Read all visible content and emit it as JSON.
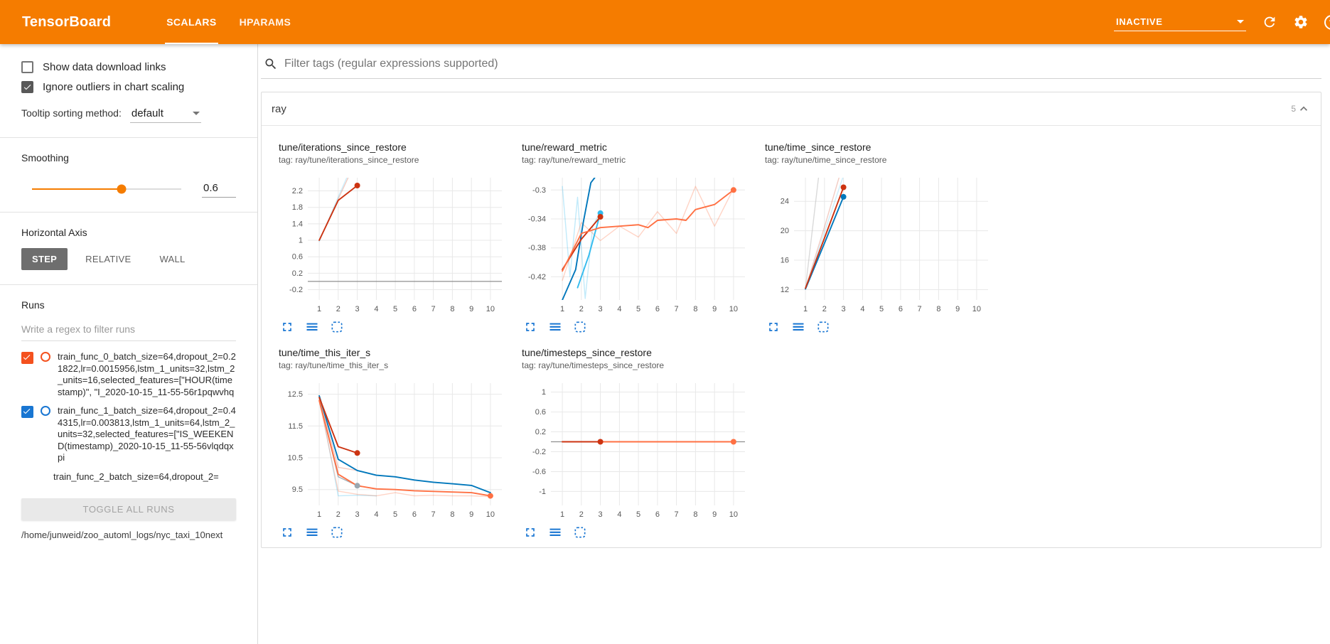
{
  "header": {
    "title": "TensorBoard",
    "tabs": [
      {
        "label": "SCALARS",
        "active": true
      },
      {
        "label": "HPARAMS",
        "active": false
      }
    ],
    "status": "INACTIVE",
    "help_glyph": "?"
  },
  "sidebar": {
    "show_download": {
      "label": "Show data download links",
      "checked": false
    },
    "ignore_outliers": {
      "label": "Ignore outliers in chart scaling",
      "checked": true
    },
    "tooltip_sorting": {
      "label": "Tooltip sorting method:",
      "value": "default"
    },
    "smoothing": {
      "label": "Smoothing",
      "value": "0.6",
      "percent": 60
    },
    "horizontal_axis": {
      "label": "Horizontal Axis",
      "options": [
        {
          "label": "STEP",
          "active": true
        },
        {
          "label": "RELATIVE",
          "active": false
        },
        {
          "label": "WALL",
          "active": false
        }
      ]
    },
    "runs": {
      "label": "Runs",
      "filter_placeholder": "Write a regex to filter runs",
      "items": [
        {
          "label": "train_func_0_batch_size=64,dropout_2=0.21822,lr=0.0015956,lstm_1_units=32,lstm_2_units=16,selected_features=[\"HOUR(timestamp)\", \"I_2020-10-15_11-55-56r1pqwvhq",
          "checked": true,
          "color": "#f4511e",
          "partial": false
        },
        {
          "label": "train_func_1_batch_size=64,dropout_2=0.44315,lr=0.003813,lstm_1_units=64,lstm_2_units=32,selected_features=[\"IS_WEEKEND(timestamp)_2020-10-15_11-55-56vlqdqxpi",
          "checked": true,
          "color": "#1976d2",
          "partial": false
        },
        {
          "label": "train_func_2_batch_size=64,dropout_2=",
          "checked": true,
          "color": "#bbbbbb",
          "partial": true
        }
      ],
      "toggle_all": "TOGGLE ALL RUNS",
      "log_dir": "/home/junweid/zoo_automl_logs/nyc_taxi_10next"
    }
  },
  "main": {
    "filter_placeholder": "Filter tags (regular expressions supported)",
    "section": {
      "title": "ray",
      "count": "5"
    }
  },
  "chart_data": [
    {
      "type": "line",
      "title": "tune/iterations_since_restore",
      "tag": "tag: ray/tune/iterations_since_restore",
      "xlim": [
        0.4,
        10.6
      ],
      "ylim": [
        -0.45,
        2.52
      ],
      "xticks": [
        1,
        2,
        3,
        4,
        5,
        6,
        7,
        8,
        9,
        10
      ],
      "yticks": [
        -0.2,
        0.2,
        0.6,
        1,
        1.4,
        1.8,
        2.2
      ],
      "zero_line": true,
      "series": [
        {
          "name": "train_func_0 raw",
          "color": "#cc3311",
          "opacity": 0.25,
          "points": [
            [
              1,
              1
            ],
            [
              2,
              2
            ],
            [
              3,
              3
            ]
          ]
        },
        {
          "name": "train_func_1 raw",
          "color": "#33bbee",
          "opacity": 0.25,
          "points": [
            [
              1,
              0.97
            ],
            [
              2,
              2.05
            ],
            [
              3,
              3.1
            ]
          ]
        },
        {
          "name": "train_func_0 smoothed",
          "color": "#cc3311",
          "opacity": 1,
          "points": [
            [
              1,
              1
            ],
            [
              2,
              1.97
            ],
            [
              3,
              2.33
            ]
          ],
          "marker": [
            3,
            2.33
          ]
        }
      ]
    },
    {
      "type": "line",
      "title": "tune/reward_metric",
      "tag": "tag: ray/tune/reward_metric",
      "xlim": [
        0.4,
        10.6
      ],
      "ylim": [
        -0.452,
        -0.283
      ],
      "xticks": [
        1,
        2,
        3,
        4,
        5,
        6,
        7,
        8,
        9,
        10
      ],
      "yticks": [
        -0.42,
        -0.38,
        -0.34,
        -0.3
      ],
      "zero_line": false,
      "series": [
        {
          "name": "cyan raw",
          "color": "#33bbee",
          "opacity": 0.3,
          "points": [
            [
              1,
              -0.295
            ],
            [
              1.4,
              -0.42
            ],
            [
              1.8,
              -0.31
            ],
            [
              2.2,
              -0.45
            ],
            [
              2.6,
              -0.35
            ],
            [
              3,
              -0.33
            ]
          ]
        },
        {
          "name": "orange raw",
          "color": "#ff7043",
          "opacity": 0.3,
          "points": [
            [
              1,
              -0.425
            ],
            [
              2,
              -0.345
            ],
            [
              3,
              -0.37
            ],
            [
              4,
              -0.35
            ],
            [
              5,
              -0.365
            ],
            [
              6,
              -0.33
            ],
            [
              7,
              -0.36
            ],
            [
              8,
              -0.295
            ],
            [
              9,
              -0.35
            ],
            [
              10,
              -0.298
            ]
          ]
        },
        {
          "name": "blue smoothed",
          "color": "#0077bb",
          "opacity": 1,
          "points": [
            [
              1,
              -0.452
            ],
            [
              1.7,
              -0.41
            ],
            [
              2.1,
              -0.345
            ],
            [
              2.5,
              -0.29
            ],
            [
              2.7,
              -0.283
            ]
          ]
        },
        {
          "name": "cyan smoothed",
          "color": "#33bbee",
          "opacity": 1,
          "points": [
            [
              1.8,
              -0.435
            ],
            [
              2.4,
              -0.39
            ],
            [
              3,
              -0.332
            ]
          ],
          "marker": [
            3,
            -0.332
          ]
        },
        {
          "name": "dark red smoothed",
          "color": "#cc3311",
          "opacity": 1,
          "points": [
            [
              1,
              -0.41
            ],
            [
              2,
              -0.368
            ],
            [
              3,
              -0.337
            ]
          ],
          "marker": [
            3,
            -0.337
          ]
        },
        {
          "name": "orange smoothed",
          "color": "#ff7043",
          "opacity": 1,
          "points": [
            [
              1,
              -0.412
            ],
            [
              2,
              -0.36
            ],
            [
              3,
              -0.352
            ],
            [
              4,
              -0.35
            ],
            [
              5,
              -0.348
            ],
            [
              5.5,
              -0.352
            ],
            [
              6,
              -0.342
            ],
            [
              7,
              -0.34
            ],
            [
              7.5,
              -0.342
            ],
            [
              8,
              -0.327
            ],
            [
              9,
              -0.32
            ],
            [
              10,
              -0.3
            ]
          ],
          "marker": [
            10,
            -0.3
          ]
        }
      ]
    },
    {
      "type": "line",
      "title": "tune/time_since_restore",
      "tag": "tag: ray/tune/time_since_restore",
      "xlim": [
        0.4,
        10.6
      ],
      "ylim": [
        10.6,
        27.2
      ],
      "xticks": [
        1,
        2,
        3,
        4,
        5,
        6,
        7,
        8,
        9,
        10
      ],
      "yticks": [
        12,
        16,
        20,
        24
      ],
      "zero_line": false,
      "series": [
        {
          "name": "gray raw",
          "color": "#bbbbbb",
          "opacity": 0.55,
          "points": [
            [
              1,
              12.2
            ],
            [
              1.7,
              27.5
            ]
          ]
        },
        {
          "name": "red raw",
          "color": "#cc3311",
          "opacity": 0.25,
          "points": [
            [
              1,
              12.2
            ],
            [
              2,
              20.5
            ],
            [
              2.8,
              27.5
            ]
          ]
        },
        {
          "name": "cyan raw",
          "color": "#33bbee",
          "opacity": 0.25,
          "points": [
            [
              1,
              12.1
            ],
            [
              2,
              19.8
            ],
            [
              3,
              27.5
            ]
          ]
        },
        {
          "name": "blue smoothed",
          "color": "#0077bb",
          "opacity": 1,
          "points": [
            [
              1,
              12.1
            ],
            [
              2,
              18.3
            ],
            [
              3,
              24.6
            ]
          ],
          "marker": [
            3,
            24.6
          ]
        },
        {
          "name": "dark red smoothed",
          "color": "#cc3311",
          "opacity": 1,
          "points": [
            [
              1,
              12.2
            ],
            [
              2,
              19
            ],
            [
              3,
              25.9
            ]
          ],
          "marker": [
            3,
            25.9
          ]
        }
      ]
    },
    {
      "type": "line",
      "title": "tune/time_this_iter_s",
      "tag": "tag: ray/tune/time_this_iter_s",
      "xlim": [
        0.4,
        10.6
      ],
      "ylim": [
        9.0,
        12.85
      ],
      "xticks": [
        1,
        2,
        3,
        4,
        5,
        6,
        7,
        8,
        9,
        10
      ],
      "yticks": [
        9.5,
        10.5,
        11.5,
        12.5
      ],
      "zero_line": false,
      "series": [
        {
          "name": "cyan raw",
          "color": "#33bbee",
          "opacity": 0.3,
          "points": [
            [
              1,
              12.45
            ],
            [
              2,
              9.3
            ],
            [
              3,
              9.32
            ],
            [
              4,
              9.3
            ]
          ]
        },
        {
          "name": "red raw",
          "color": "#cc3311",
          "opacity": 0.25,
          "points": [
            [
              1,
              12.4
            ],
            [
              2,
              10.2
            ],
            [
              3,
              10.1
            ]
          ]
        },
        {
          "name": "orange raw",
          "color": "#ff7043",
          "opacity": 0.3,
          "points": [
            [
              1,
              12.3
            ],
            [
              2,
              9.45
            ],
            [
              3,
              9.35
            ],
            [
              4,
              9.3
            ],
            [
              5,
              9.4
            ],
            [
              6,
              9.3
            ],
            [
              7,
              9.32
            ],
            [
              8,
              9.3
            ],
            [
              9,
              9.3
            ],
            [
              10,
              9.28
            ]
          ]
        },
        {
          "name": "gray smoothed",
          "color": "#9aa7b0",
          "opacity": 0.9,
          "points": [
            [
              1,
              12.35
            ],
            [
              2,
              9.9
            ],
            [
              3,
              9.62
            ]
          ],
          "marker": [
            3,
            9.62
          ]
        },
        {
          "name": "blue smoothed",
          "color": "#0077bb",
          "opacity": 1,
          "points": [
            [
              1,
              12.45
            ],
            [
              2,
              10.45
            ],
            [
              3,
              10.1
            ],
            [
              4,
              9.95
            ],
            [
              5,
              9.9
            ],
            [
              6,
              9.8
            ],
            [
              7,
              9.73
            ],
            [
              8,
              9.68
            ],
            [
              9,
              9.63
            ],
            [
              10,
              9.4
            ]
          ]
        },
        {
          "name": "dark red smoothed",
          "color": "#cc3311",
          "opacity": 1,
          "points": [
            [
              1,
              12.4
            ],
            [
              2,
              10.85
            ],
            [
              3,
              10.65
            ]
          ],
          "marker": [
            3,
            10.65
          ]
        },
        {
          "name": "orange smoothed",
          "color": "#ff7043",
          "opacity": 1,
          "points": [
            [
              1,
              12.3
            ],
            [
              2,
              9.98
            ],
            [
              3,
              9.62
            ],
            [
              4,
              9.52
            ],
            [
              5,
              9.5
            ],
            [
              6,
              9.46
            ],
            [
              7,
              9.44
            ],
            [
              8,
              9.42
            ],
            [
              9,
              9.4
            ],
            [
              10,
              9.3
            ]
          ],
          "marker": [
            10,
            9.3
          ]
        }
      ]
    },
    {
      "type": "line",
      "title": "tune/timesteps_since_restore",
      "tag": "tag: ray/tune/timesteps_since_restore",
      "xlim": [
        0.4,
        10.6
      ],
      "ylim": [
        -1.28,
        1.18
      ],
      "xticks": [
        1,
        2,
        3,
        4,
        5,
        6,
        7,
        8,
        9,
        10
      ],
      "yticks": [
        -1,
        -0.6,
        -0.2,
        0.2,
        0.6,
        1
      ],
      "zero_line": true,
      "series": [
        {
          "name": "orange smoothed",
          "color": "#ff7043",
          "opacity": 1,
          "points": [
            [
              1,
              0
            ],
            [
              10,
              0
            ]
          ],
          "marker": [
            10,
            0
          ]
        },
        {
          "name": "dark red smoothed",
          "color": "#cc3311",
          "opacity": 1,
          "points": [
            [
              1,
              0
            ],
            [
              3,
              0
            ]
          ],
          "marker": [
            3,
            0
          ]
        }
      ]
    }
  ]
}
